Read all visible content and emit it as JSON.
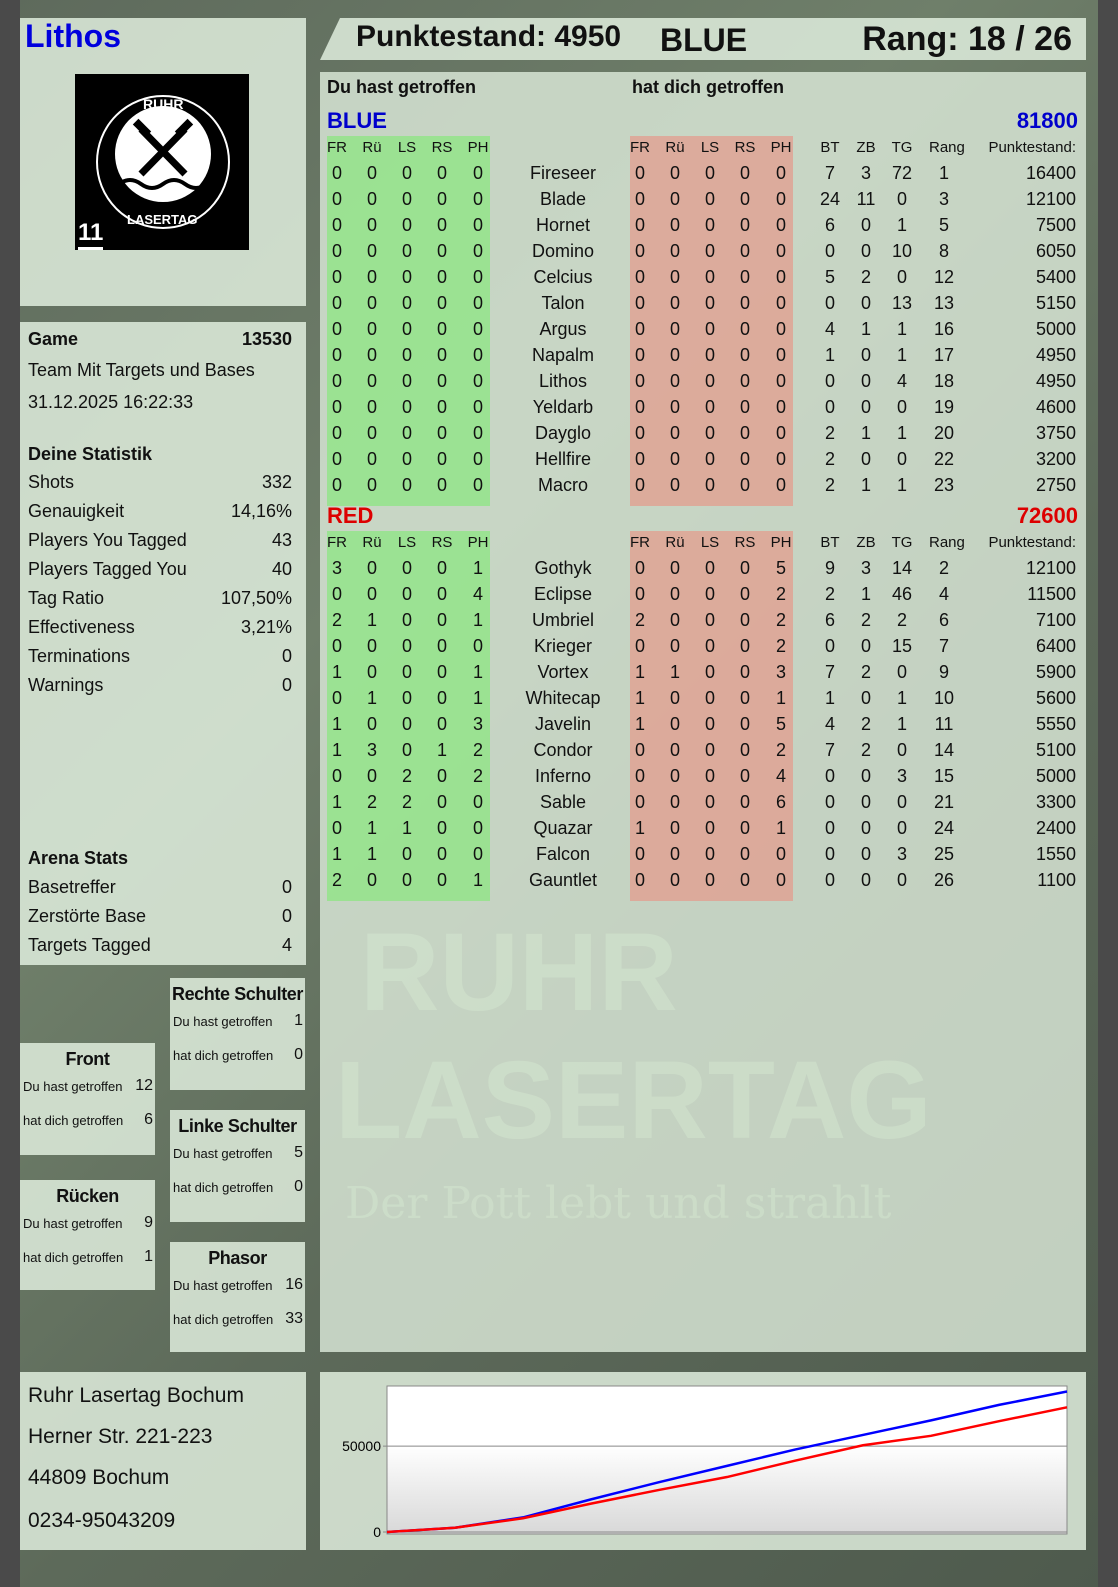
{
  "player": {
    "name": "Lithos",
    "score_label": "Punktestand: 4950",
    "team": "BLUE",
    "rank_label": "Rang: 18 / 26"
  },
  "logo": {
    "top_text": "RUHR",
    "bottom_text": "LASERTAG",
    "badge": "11"
  },
  "watermark": {
    "line1": "RUHR",
    "line2": "LASERTAG",
    "slogan": "Der Pott lebt und strahlt"
  },
  "game": {
    "label": "Game",
    "id": "13530",
    "mode": "Team Mit Targets und Bases",
    "datetime": "31.12.2025 16:22:33"
  },
  "stats": {
    "title": "Deine Statistik",
    "rows": [
      {
        "label": "Shots",
        "value": "332"
      },
      {
        "label": "Genauigkeit",
        "value": "14,16%"
      },
      {
        "label": "Players You Tagged",
        "value": "43"
      },
      {
        "label": "Players Tagged You",
        "value": "40"
      },
      {
        "label": "Tag Ratio",
        "value": "107,50%"
      },
      {
        "label": "Effectiveness",
        "value": "3,21%"
      },
      {
        "label": "Terminations",
        "value": "0"
      },
      {
        "label": "Warnings",
        "value": "0"
      }
    ]
  },
  "arena": {
    "title": "Arena Stats",
    "rows": [
      {
        "label": "Basetreffer",
        "value": "0"
      },
      {
        "label": "Zerstörte Base",
        "value": "0"
      },
      {
        "label": "Targets Tagged",
        "value": "4"
      }
    ]
  },
  "hitzones": [
    {
      "title": "Rechte Schulter",
      "you_hit_label": "Du hast getroffen",
      "you_hit": "1",
      "hit_you_label": "hat dich getroffen",
      "hit_you": "0"
    },
    {
      "title": "Front",
      "you_hit_label": "Du hast getroffen",
      "you_hit": "12",
      "hit_you_label": "hat dich getroffen",
      "hit_you": "6"
    },
    {
      "title": "Linke Schulter",
      "you_hit_label": "Du hast getroffen",
      "you_hit": "5",
      "hit_you_label": "hat dich getroffen",
      "hit_you": "0"
    },
    {
      "title": "Rücken",
      "you_hit_label": "Du hast getroffen",
      "you_hit": "9",
      "hit_you_label": "hat dich getroffen",
      "hit_you": "1"
    },
    {
      "title": "Phasor",
      "you_hit_label": "Du hast getroffen",
      "you_hit": "16",
      "hit_you_label": "hat dich getroffen",
      "hit_you": "33"
    }
  ],
  "address": {
    "line1": "Ruhr Lasertag Bochum",
    "line2": "Herner Str. 221-223",
    "line3": "44809 Bochum",
    "phone": "0234-95043209"
  },
  "table": {
    "you_hit_label": "Du hast getroffen",
    "hit_you_label": "hat dich getroffen",
    "hit_columns": [
      "FR",
      "Rü",
      "LS",
      "RS",
      "PH"
    ],
    "stat_columns": [
      "BT",
      "ZB",
      "TG",
      "Rang"
    ],
    "score_column": "Punktestand:",
    "teams": [
      {
        "name": "BLUE",
        "total": "81800",
        "color": "#0000cc",
        "players": [
          [
            "0",
            "0",
            "0",
            "0",
            "0",
            "Fireseer",
            "0",
            "0",
            "0",
            "0",
            "0",
            "7",
            "3",
            "72",
            "1",
            "16400"
          ],
          [
            "0",
            "0",
            "0",
            "0",
            "0",
            "Blade",
            "0",
            "0",
            "0",
            "0",
            "0",
            "24",
            "11",
            "0",
            "3",
            "12100"
          ],
          [
            "0",
            "0",
            "0",
            "0",
            "0",
            "Hornet",
            "0",
            "0",
            "0",
            "0",
            "0",
            "6",
            "0",
            "1",
            "5",
            "7500"
          ],
          [
            "0",
            "0",
            "0",
            "0",
            "0",
            "Domino",
            "0",
            "0",
            "0",
            "0",
            "0",
            "0",
            "0",
            "10",
            "8",
            "6050"
          ],
          [
            "0",
            "0",
            "0",
            "0",
            "0",
            "Celcius",
            "0",
            "0",
            "0",
            "0",
            "0",
            "5",
            "2",
            "0",
            "12",
            "5400"
          ],
          [
            "0",
            "0",
            "0",
            "0",
            "0",
            "Talon",
            "0",
            "0",
            "0",
            "0",
            "0",
            "0",
            "0",
            "13",
            "13",
            "5150"
          ],
          [
            "0",
            "0",
            "0",
            "0",
            "0",
            "Argus",
            "0",
            "0",
            "0",
            "0",
            "0",
            "4",
            "1",
            "1",
            "16",
            "5000"
          ],
          [
            "0",
            "0",
            "0",
            "0",
            "0",
            "Napalm",
            "0",
            "0",
            "0",
            "0",
            "0",
            "1",
            "0",
            "1",
            "17",
            "4950"
          ],
          [
            "0",
            "0",
            "0",
            "0",
            "0",
            "Lithos",
            "0",
            "0",
            "0",
            "0",
            "0",
            "0",
            "0",
            "4",
            "18",
            "4950"
          ],
          [
            "0",
            "0",
            "0",
            "0",
            "0",
            "Yeldarb",
            "0",
            "0",
            "0",
            "0",
            "0",
            "0",
            "0",
            "0",
            "19",
            "4600"
          ],
          [
            "0",
            "0",
            "0",
            "0",
            "0",
            "Dayglo",
            "0",
            "0",
            "0",
            "0",
            "0",
            "2",
            "1",
            "1",
            "20",
            "3750"
          ],
          [
            "0",
            "0",
            "0",
            "0",
            "0",
            "Hellfire",
            "0",
            "0",
            "0",
            "0",
            "0",
            "2",
            "0",
            "0",
            "22",
            "3200"
          ],
          [
            "0",
            "0",
            "0",
            "0",
            "0",
            "Macro",
            "0",
            "0",
            "0",
            "0",
            "0",
            "2",
            "1",
            "1",
            "23",
            "2750"
          ]
        ]
      },
      {
        "name": "RED",
        "total": "72600",
        "color": "#dd0000",
        "players": [
          [
            "3",
            "0",
            "0",
            "0",
            "1",
            "Gothyk",
            "0",
            "0",
            "0",
            "0",
            "5",
            "9",
            "3",
            "14",
            "2",
            "12100"
          ],
          [
            "0",
            "0",
            "0",
            "0",
            "4",
            "Eclipse",
            "0",
            "0",
            "0",
            "0",
            "2",
            "2",
            "1",
            "46",
            "4",
            "11500"
          ],
          [
            "2",
            "1",
            "0",
            "0",
            "1",
            "Umbriel",
            "2",
            "0",
            "0",
            "0",
            "2",
            "6",
            "2",
            "2",
            "6",
            "7100"
          ],
          [
            "0",
            "0",
            "0",
            "0",
            "0",
            "Krieger",
            "0",
            "0",
            "0",
            "0",
            "2",
            "0",
            "0",
            "15",
            "7",
            "6400"
          ],
          [
            "1",
            "0",
            "0",
            "0",
            "1",
            "Vortex",
            "1",
            "1",
            "0",
            "0",
            "3",
            "7",
            "2",
            "0",
            "9",
            "5900"
          ],
          [
            "0",
            "1",
            "0",
            "0",
            "1",
            "Whitecap",
            "1",
            "0",
            "0",
            "0",
            "1",
            "1",
            "0",
            "1",
            "10",
            "5600"
          ],
          [
            "1",
            "0",
            "0",
            "0",
            "3",
            "Javelin",
            "1",
            "0",
            "0",
            "0",
            "5",
            "4",
            "2",
            "1",
            "11",
            "5550"
          ],
          [
            "1",
            "3",
            "0",
            "1",
            "2",
            "Condor",
            "0",
            "0",
            "0",
            "0",
            "2",
            "7",
            "2",
            "0",
            "14",
            "5100"
          ],
          [
            "0",
            "0",
            "2",
            "0",
            "2",
            "Inferno",
            "0",
            "0",
            "0",
            "0",
            "4",
            "0",
            "0",
            "3",
            "15",
            "5000"
          ],
          [
            "1",
            "2",
            "2",
            "0",
            "0",
            "Sable",
            "0",
            "0",
            "0",
            "0",
            "6",
            "0",
            "0",
            "0",
            "21",
            "3300"
          ],
          [
            "0",
            "1",
            "1",
            "0",
            "0",
            "Quazar",
            "1",
            "0",
            "0",
            "0",
            "1",
            "0",
            "0",
            "0",
            "24",
            "2400"
          ],
          [
            "1",
            "1",
            "0",
            "0",
            "0",
            "Falcon",
            "0",
            "0",
            "0",
            "0",
            "0",
            "0",
            "0",
            "3",
            "25",
            "1550"
          ],
          [
            "2",
            "0",
            "0",
            "0",
            "1",
            "Gauntlet",
            "0",
            "0",
            "0",
            "0",
            "0",
            "0",
            "0",
            "0",
            "26",
            "1100"
          ]
        ]
      }
    ]
  },
  "chart_data": {
    "type": "line",
    "ylim": [
      0,
      85000
    ],
    "yticks": [
      "0",
      "50000"
    ],
    "grid": true,
    "x": [
      0,
      1,
      2,
      3,
      4,
      5,
      6,
      7,
      8,
      9,
      10
    ],
    "series": [
      {
        "color": "#0000ff",
        "values": [
          0,
          2500,
          8500,
          19000,
          29000,
          38500,
          48000,
          56500,
          65000,
          74000,
          81800
        ]
      },
      {
        "color": "#ff0000",
        "values": [
          0,
          2500,
          8000,
          16500,
          24500,
          32000,
          41500,
          50500,
          56000,
          64500,
          72600
        ]
      }
    ]
  }
}
